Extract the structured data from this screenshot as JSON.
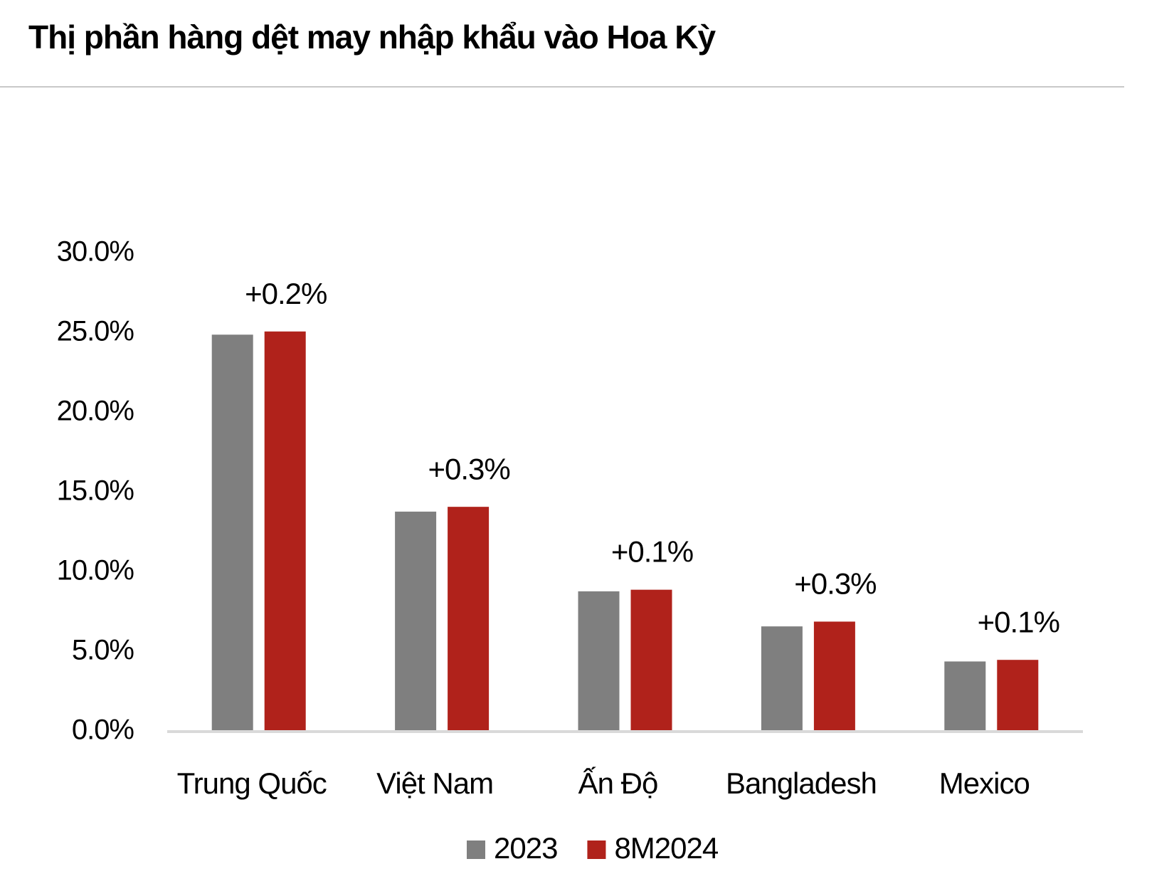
{
  "chart_data": {
    "type": "bar",
    "title": "Thị phần hàng dệt may nhập khẩu vào Hoa Kỳ",
    "categories": [
      "Trung Quốc",
      "Việt Nam",
      "Ấn Độ",
      "Bangladesh",
      "Mexico"
    ],
    "series": [
      {
        "name": "2023",
        "color": "#7f7f7f",
        "values": [
          24.9,
          13.8,
          8.8,
          6.6,
          4.4
        ]
      },
      {
        "name": "8M2024",
        "color": "#b0221b",
        "values": [
          25.1,
          14.1,
          8.9,
          6.9,
          4.5
        ]
      }
    ],
    "annotations": [
      "+0.2%",
      "+0.3%",
      "+0.1%",
      "+0.3%",
      "+0.1%"
    ],
    "ylim": [
      0,
      30
    ],
    "yticks": [
      {
        "value": 0,
        "label": "0.0%"
      },
      {
        "value": 5,
        "label": "5.0%"
      },
      {
        "value": 10,
        "label": "10.0%"
      },
      {
        "value": 15,
        "label": "15.0%"
      },
      {
        "value": 20,
        "label": "20.0%"
      },
      {
        "value": 25,
        "label": "25.0%"
      },
      {
        "value": 30,
        "label": "30.0%"
      }
    ],
    "grid": false,
    "legend": "bottom"
  }
}
